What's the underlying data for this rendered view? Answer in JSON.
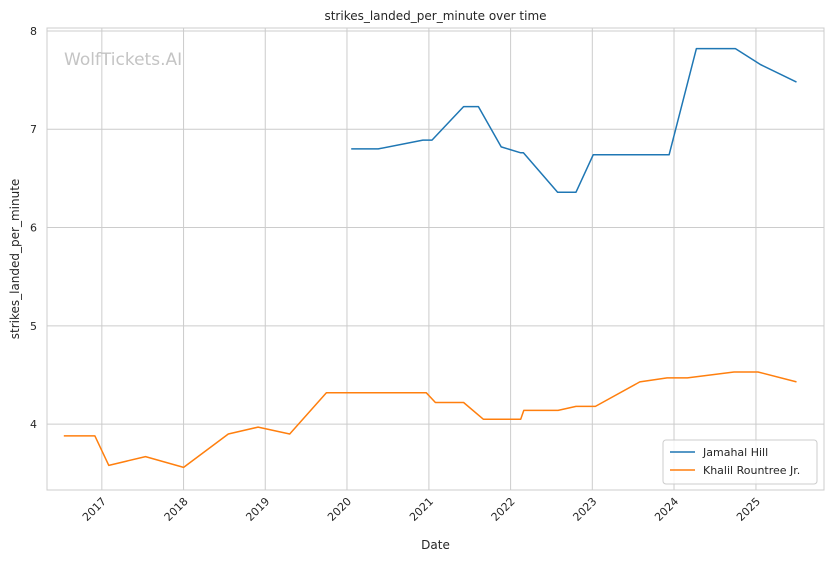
{
  "watermark": "WolfTickets.AI",
  "chart_data": {
    "type": "line",
    "title": "strikes_landed_per_minute over time",
    "xlabel": "Date",
    "ylabel": "strikes_landed_per_minute",
    "x_ticks": [
      "2017",
      "2018",
      "2019",
      "2020",
      "2021",
      "2022",
      "2023",
      "2024",
      "2025"
    ],
    "y_ticks": [
      "4",
      "5",
      "6",
      "7",
      "8"
    ],
    "xlim": [
      "2016-05-01",
      "2025-11-01"
    ],
    "ylim": [
      3.33,
      8.03
    ],
    "grid": true,
    "legend_position": "lower-right",
    "series": [
      {
        "name": "Jamahal Hill",
        "color": "#1f77b4",
        "points": [
          [
            "2020-01-20",
            6.8
          ],
          [
            "2020-05-20",
            6.8
          ],
          [
            "2020-12-05",
            6.89
          ],
          [
            "2021-01-15",
            6.89
          ],
          [
            "2021-06-05",
            7.23
          ],
          [
            "2021-08-10",
            7.23
          ],
          [
            "2021-11-20",
            6.82
          ],
          [
            "2022-02-15",
            6.76
          ],
          [
            "2022-02-27",
            6.76
          ],
          [
            "2022-07-30",
            6.36
          ],
          [
            "2022-10-20",
            6.36
          ],
          [
            "2023-01-05",
            6.74
          ],
          [
            "2023-12-10",
            6.74
          ],
          [
            "2024-04-10",
            7.82
          ],
          [
            "2024-10-01",
            7.82
          ],
          [
            "2025-01-20",
            7.66
          ],
          [
            "2025-07-01",
            7.48
          ]
        ]
      },
      {
        "name": "Khalil Rountree Jr.",
        "color": "#ff7f0e",
        "points": [
          [
            "2016-07-15",
            3.88
          ],
          [
            "2016-12-01",
            3.88
          ],
          [
            "2017-02-01",
            3.58
          ],
          [
            "2017-07-15",
            3.67
          ],
          [
            "2018-01-01",
            3.56
          ],
          [
            "2018-07-20",
            3.9
          ],
          [
            "2018-11-30",
            3.97
          ],
          [
            "2019-04-20",
            3.9
          ],
          [
            "2019-10-01",
            4.32
          ],
          [
            "2020-12-20",
            4.32
          ],
          [
            "2021-01-30",
            4.22
          ],
          [
            "2021-06-05",
            4.22
          ],
          [
            "2021-09-01",
            4.05
          ],
          [
            "2022-02-15",
            4.05
          ],
          [
            "2022-03-01",
            4.14
          ],
          [
            "2022-08-01",
            4.14
          ],
          [
            "2022-10-20",
            4.18
          ],
          [
            "2023-01-15",
            4.18
          ],
          [
            "2023-08-01",
            4.43
          ],
          [
            "2023-12-01",
            4.47
          ],
          [
            "2024-03-01",
            4.47
          ],
          [
            "2024-09-25",
            4.53
          ],
          [
            "2025-01-10",
            4.53
          ],
          [
            "2025-07-01",
            4.43
          ]
        ]
      }
    ]
  }
}
